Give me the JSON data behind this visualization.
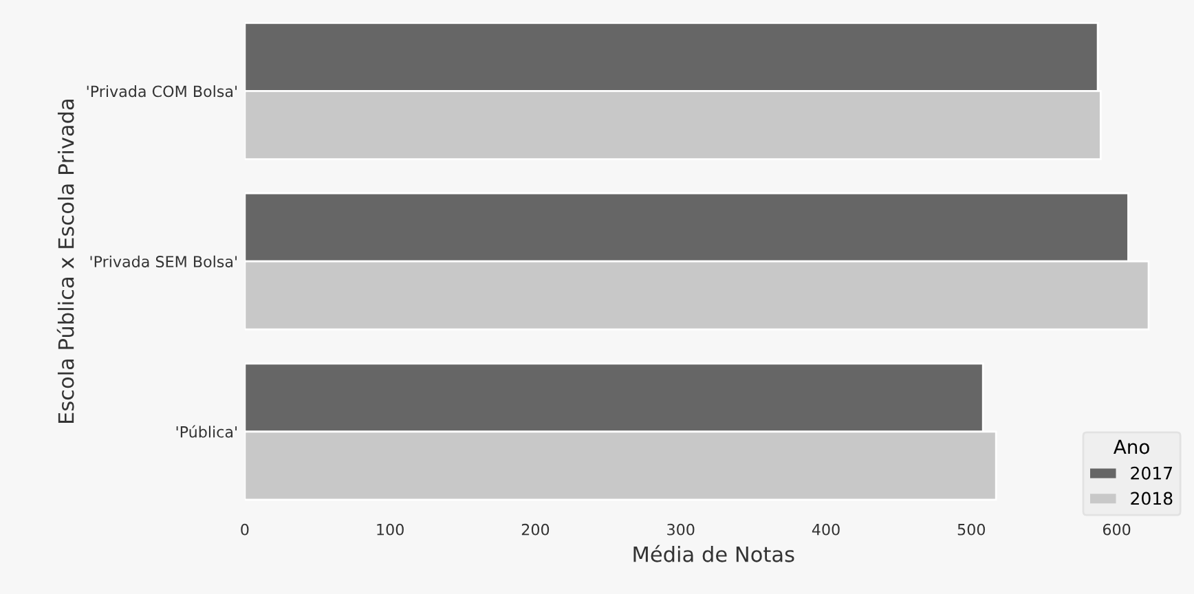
{
  "chart_data": {
    "type": "bar",
    "orientation": "horizontal",
    "xlabel": "Média de Notas",
    "ylabel": "Escola Pública x Escola Privada",
    "legend_title": "Ano",
    "categories": [
      "'Privada COM Bolsa'",
      "'Privada SEM Bolsa'",
      "'Pública'"
    ],
    "series": [
      {
        "name": "2017",
        "color": "#666666",
        "values": [
          587,
          608,
          508
        ]
      },
      {
        "name": "2018",
        "color": "#c8c8c8",
        "values": [
          589,
          622,
          517
        ]
      }
    ],
    "xlim": [
      0,
      645
    ],
    "xticks": [
      0,
      100,
      200,
      300,
      400,
      500,
      600
    ],
    "grid": false,
    "legend": "bottom right"
  }
}
